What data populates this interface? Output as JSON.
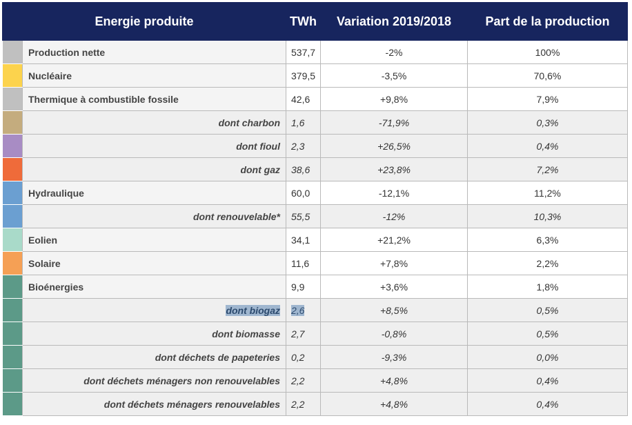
{
  "header": {
    "col_energy": "Energie produite",
    "col_twh": "TWh",
    "col_variation": "Variation 2019/2018",
    "col_share": "Part de la production"
  },
  "rows": [
    {
      "label": "Production nette",
      "twh": "537,7",
      "variation": "-2%",
      "share": "100%",
      "color": "#c0c0c0",
      "sub": false
    },
    {
      "label": "Nucléaire",
      "twh": "379,5",
      "variation": "-3,5%",
      "share": "70,6%",
      "color": "#fcd34d",
      "sub": false
    },
    {
      "label": "Thermique à combustible fossile",
      "twh": "42,6",
      "variation": "+9,8%",
      "share": "7,9%",
      "color": "#c0c0c0",
      "sub": false
    },
    {
      "label": "dont charbon",
      "twh": "1,6",
      "variation": "-71,9%",
      "share": "0,3%",
      "color": "#c4ac7e",
      "sub": true
    },
    {
      "label": "dont fioul",
      "twh": "2,3",
      "variation": "+26,5%",
      "share": "0,4%",
      "color": "#a88cc4",
      "sub": true
    },
    {
      "label": "dont gaz",
      "twh": "38,6",
      "variation": "+23,8%",
      "share": "7,2%",
      "color": "#ef6b3a",
      "sub": true
    },
    {
      "label": "Hydraulique",
      "twh": "60,0",
      "variation": "-12,1%",
      "share": "11,2%",
      "color": "#6b9fd1",
      "sub": false
    },
    {
      "label": "dont renouvelable*",
      "twh": "55,5",
      "variation": "-12%",
      "share": "10,3%",
      "color": "#6b9fd1",
      "sub": true
    },
    {
      "label": "Eolien",
      "twh": "34,1",
      "variation": "+21,2%",
      "share": "6,3%",
      "color": "#a9dac9",
      "sub": false
    },
    {
      "label": "Solaire",
      "twh": "11,6",
      "variation": "+7,8%",
      "share": "2,2%",
      "color": "#f5a055",
      "sub": false
    },
    {
      "label": "Bioénergies",
      "twh": "9,9",
      "variation": "+3,6%",
      "share": "1,8%",
      "color": "#5c9a88",
      "sub": false
    },
    {
      "label": "dont biogaz",
      "twh": "2,6",
      "variation": "+8,5%",
      "share": "0,5%",
      "color": "#5c9a88",
      "sub": true,
      "selected": true
    },
    {
      "label": "dont biomasse",
      "twh": "2,7",
      "variation": "-0,8%",
      "share": "0,5%",
      "color": "#5c9a88",
      "sub": true
    },
    {
      "label": "dont déchets de papeteries",
      "twh": "0,2",
      "variation": "-9,3%",
      "share": "0,0%",
      "color": "#5c9a88",
      "sub": true
    },
    {
      "label": "dont déchets ménagers non renouvelables",
      "twh": "2,2",
      "variation": "+4,8%",
      "share": "0,4%",
      "color": "#5c9a88",
      "sub": true
    },
    {
      "label": "dont déchets ménagers renouvelables",
      "twh": "2,2",
      "variation": "+4,8%",
      "share": "0,4%",
      "color": "#5c9a88",
      "sub": true
    }
  ]
}
